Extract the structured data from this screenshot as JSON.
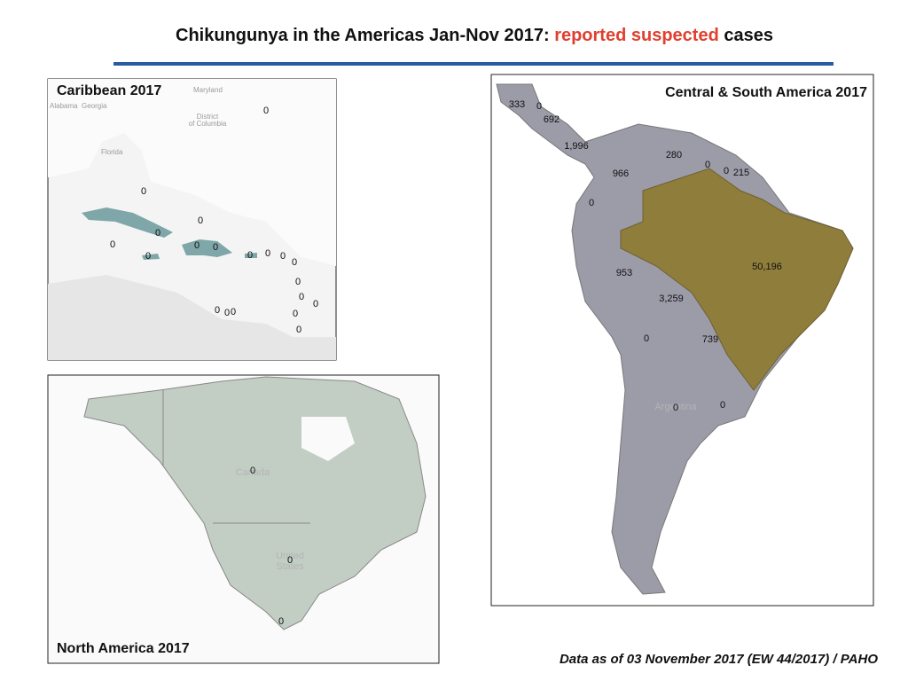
{
  "header": {
    "title_start": "Chikungunya in the Americas Jan-Nov 2017:",
    "title_highlight": "reported suspected",
    "title_end": "cases"
  },
  "panels": {
    "caribbean": {
      "title": "Caribbean 2017",
      "places": [
        "Maryland",
        "Alabama",
        "Georgia",
        "District",
        "of Columbia",
        "Florida"
      ],
      "labels": [
        "0",
        "0",
        "0",
        "0",
        "0",
        "0",
        "0",
        "0",
        "0",
        "0",
        "0",
        "0",
        "0",
        "0",
        "0",
        "0",
        "0",
        "0",
        "0",
        "0"
      ]
    },
    "central_south": {
      "title": "Central & South America  2017",
      "places": [
        "Argentina"
      ],
      "labels": [
        "333",
        "0",
        "692",
        "1,996",
        "280",
        "0",
        "0",
        "215",
        "966",
        "0",
        "953",
        "50,196",
        "3,259",
        "0",
        "739",
        "0",
        "0"
      ]
    },
    "north_america": {
      "title": "North America 2017",
      "places": [
        "Canada",
        "United",
        "States"
      ],
      "labels": [
        "0",
        "0",
        "0"
      ]
    }
  },
  "footer": {
    "source": "Data as of 03 November 2017 (EW 44/2017) / PAHO"
  }
}
